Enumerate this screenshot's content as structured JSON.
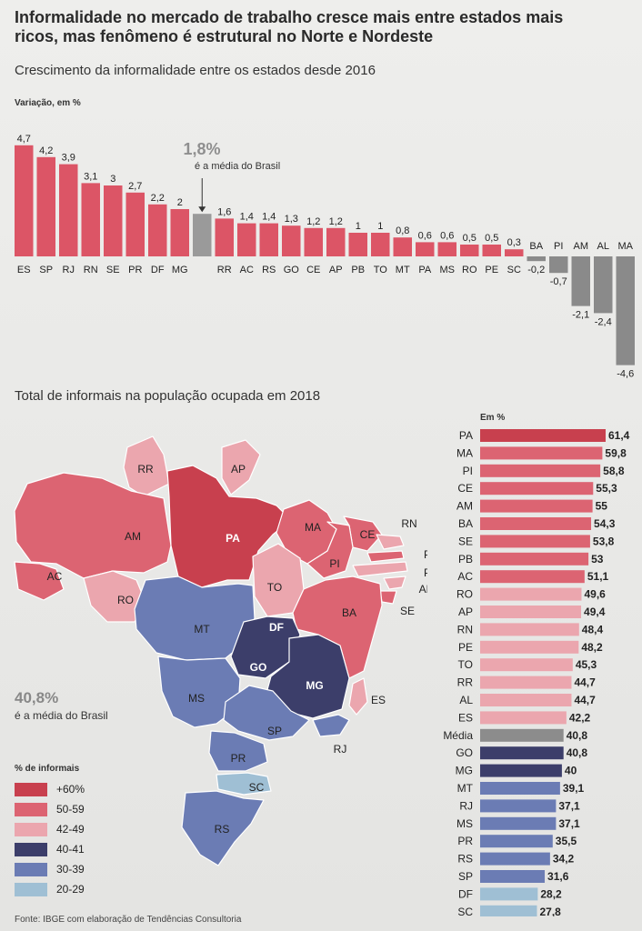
{
  "headline": "Informalidade no mercado de trabalho cresce mais entre estados mais ricos, mas fenômeno é estrutural no Norte e Nordeste",
  "section1_title": "Crescimento da informalidade entre os estados desde 2016",
  "section1_unit": "Variação, em %",
  "section2_title": "Total de informais na população ocupada em 2018",
  "section2_unit": "Em %",
  "map_avg_value": "40,8%",
  "map_avg_label": "é a média do Brasil",
  "legend": {
    "title": "% de informais",
    "items": [
      {
        "label": "+60%",
        "color": "#c8404e"
      },
      {
        "label": "50-59",
        "color": "#dc6472"
      },
      {
        "label": "42-49",
        "color": "#eba6ae"
      },
      {
        "label": "40-41",
        "color": "#3c3e6a"
      },
      {
        "label": "30-39",
        "color": "#6b7cb4"
      },
      {
        "label": "20-29",
        "color": "#9fbfd4"
      }
    ]
  },
  "source": "Fonte: IBGE com elaboração de Tendências Consultoria",
  "colors": {
    "bar": "#dc5566",
    "average": "#9a9a9a",
    "negative": "#8a8a8a"
  },
  "map_states": [
    "RR",
    "AP",
    "AM",
    "PA",
    "MA",
    "CE",
    "RN",
    "PB",
    "PE",
    "AL",
    "SE",
    "PI",
    "TO",
    "BA",
    "AC",
    "RO",
    "MT",
    "DF",
    "GO",
    "MG",
    "ES",
    "MS",
    "SP",
    "RJ",
    "PR",
    "SC",
    "RS"
  ],
  "chart_data": [
    {
      "type": "bar",
      "title": "Crescimento da informalidade entre os estados desde 2016",
      "ylabel": "Variação, em %",
      "categories": [
        "ES",
        "SP",
        "RJ",
        "RN",
        "SE",
        "PR",
        "DF",
        "MG",
        "Média",
        "RR",
        "AC",
        "RS",
        "GO",
        "CE",
        "AP",
        "PB",
        "TO",
        "MT",
        "PA",
        "MS",
        "RO",
        "PE",
        "SC",
        "BA",
        "PI",
        "AM",
        "AL",
        "MA"
      ],
      "values": [
        4.7,
        4.2,
        3.9,
        3.1,
        3,
        2.7,
        2.2,
        2,
        1.8,
        1.6,
        1.4,
        1.4,
        1.3,
        1.2,
        1.2,
        1,
        1,
        0.8,
        0.6,
        0.6,
        0.5,
        0.5,
        0.3,
        -0.2,
        -0.7,
        -2.1,
        -2.4,
        -4.6
      ],
      "value_labels": [
        "4,7",
        "4,2",
        "3,9",
        "3,1",
        "3",
        "2,7",
        "2,2",
        "2",
        "1,8%",
        "1,6",
        "1,4",
        "1,4",
        "1,3",
        "1,2",
        "1,2",
        "1",
        "1",
        "0,8",
        "0,6",
        "0,6",
        "0,5",
        "0,5",
        "0,3",
        "-0,2",
        "-0,7",
        "-2,1",
        "-2,4",
        "-4,6"
      ],
      "annotation": {
        "value": "1,8%",
        "text": "é a média do Brasil"
      },
      "ylim": [
        -4.6,
        4.7
      ]
    },
    {
      "type": "bar",
      "orientation": "horizontal",
      "title": "Total de informais na população ocupada em 2018",
      "xlabel": "Em %",
      "categories": [
        "PA",
        "MA",
        "PI",
        "CE",
        "AM",
        "BA",
        "SE",
        "PB",
        "AC",
        "RO",
        "AP",
        "RN",
        "PE",
        "TO",
        "RR",
        "AL",
        "ES",
        "Média",
        "GO",
        "MG",
        "MT",
        "RJ",
        "MS",
        "PR",
        "RS",
        "SP",
        "DF",
        "SC"
      ],
      "values": [
        61.4,
        59.8,
        58.8,
        55.3,
        55,
        54.3,
        53.8,
        53,
        51.1,
        49.6,
        49.4,
        48.4,
        48.2,
        45.3,
        44.7,
        44.7,
        42.2,
        40.8,
        40.8,
        40,
        39.1,
        37.1,
        37.1,
        35.5,
        34.2,
        31.6,
        28.2,
        27.8
      ],
      "value_labels": [
        "61,4",
        "59,8",
        "58,8",
        "55,3",
        "55",
        "54,3",
        "53,8",
        "53",
        "51,1",
        "49,6",
        "49,4",
        "48,4",
        "48,2",
        "45,3",
        "44,7",
        "44,7",
        "42,2",
        "40,8",
        "40,8",
        "40",
        "39,1",
        "37,1",
        "37,1",
        "35,5",
        "34,2",
        "31,6",
        "28,2",
        "27,8"
      ],
      "colors": [
        "#c8404e",
        "#dc6472",
        "#dc6472",
        "#dc6472",
        "#dc6472",
        "#dc6472",
        "#dc6472",
        "#dc6472",
        "#dc6472",
        "#eba6ae",
        "#eba6ae",
        "#eba6ae",
        "#eba6ae",
        "#eba6ae",
        "#eba6ae",
        "#eba6ae",
        "#eba6ae",
        "#8c8c8c",
        "#3c3e6a",
        "#3c3e6a",
        "#6b7cb4",
        "#6b7cb4",
        "#6b7cb4",
        "#6b7cb4",
        "#6b7cb4",
        "#6b7cb4",
        "#9fbfd4",
        "#9fbfd4"
      ],
      "xlim": [
        0,
        61.4
      ]
    }
  ]
}
